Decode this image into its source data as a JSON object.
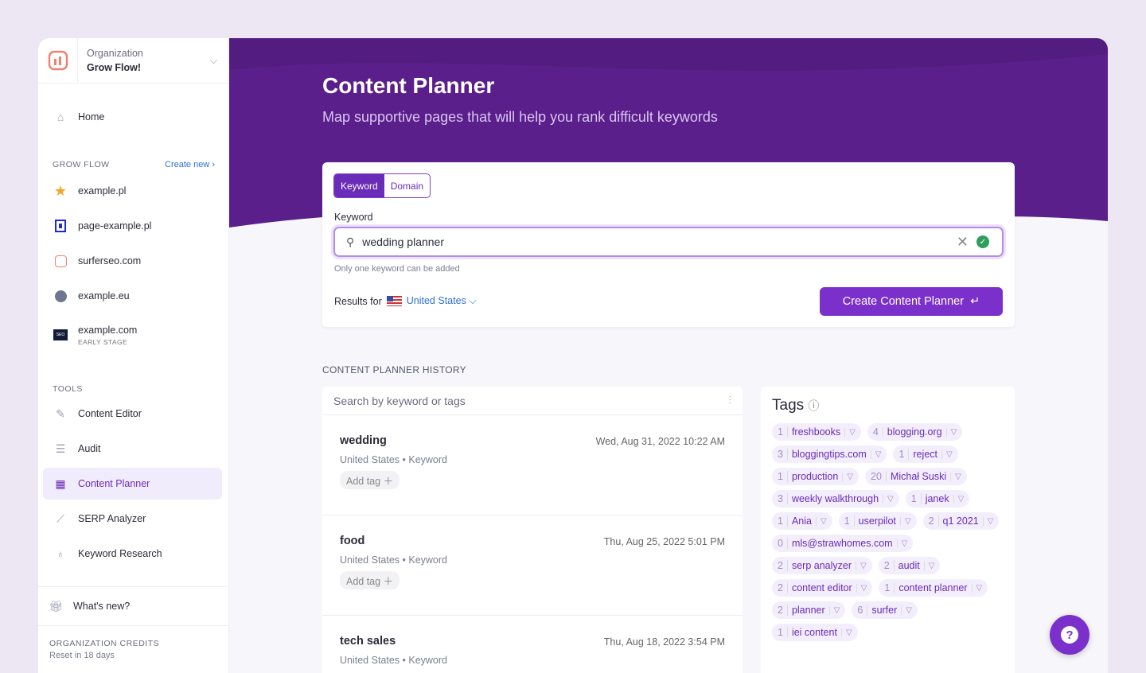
{
  "org": {
    "label": "Organization",
    "name": "Grow Flow!"
  },
  "nav": {
    "home": "Home",
    "section_grow": "GROW FLOW",
    "create_new": "Create new",
    "projects": [
      {
        "label": "example.pl",
        "icon": "star-icon"
      },
      {
        "label": "page-example.pl",
        "icon": "site-logo-icon"
      },
      {
        "label": "surferseo.com",
        "icon": "surfer-logo-icon"
      },
      {
        "label": "example.eu",
        "icon": "globe-icon"
      },
      {
        "label": "example.com",
        "sub": "EARLY STAGE",
        "icon": "seo-logo-icon"
      }
    ],
    "section_tools": "TOOLS",
    "tools": [
      {
        "label": "Content Editor",
        "icon": "pencil-icon"
      },
      {
        "label": "Audit",
        "icon": "menu-icon"
      },
      {
        "label": "Content Planner",
        "icon": "grid-icon",
        "active": true
      },
      {
        "label": "SERP Analyzer",
        "icon": "chart-line-icon"
      },
      {
        "label": "Keyword Research",
        "icon": "lightbulb-icon"
      }
    ],
    "whats_new": "What's new?",
    "credits": "ORGANIZATION CREDITS",
    "reset": "Reset in 18 days"
  },
  "header": {
    "title": "Content Planner",
    "subtitle": "Map supportive pages that will help you rank difficult keywords"
  },
  "form": {
    "tab_keyword": "Keyword",
    "tab_domain": "Domain",
    "label": "Keyword",
    "value": "wedding planner",
    "hint": "Only one keyword can be added",
    "results_for": "Results for",
    "country": "United States",
    "submit": "Create Content Planner"
  },
  "history": {
    "title": "CONTENT PLANNER HISTORY",
    "search_placeholder": "Search by keyword or tags",
    "add_tag": "Add tag",
    "items": [
      {
        "keyword": "wedding",
        "date": "Wed, Aug 31, 2022 10:22 AM",
        "meta": "United States • Keyword"
      },
      {
        "keyword": "food",
        "date": "Thu, Aug 25, 2022 5:01 PM",
        "meta": "United States • Keyword"
      },
      {
        "keyword": "tech sales",
        "date": "Thu, Aug 18, 2022 3:54 PM",
        "meta": "United States • Keyword"
      }
    ]
  },
  "tags": {
    "title": "Tags",
    "items": [
      {
        "n": "1",
        "label": "freshbooks"
      },
      {
        "n": "4",
        "label": "blogging.org"
      },
      {
        "n": "3",
        "label": "bloggingtips.com"
      },
      {
        "n": "1",
        "label": "reject"
      },
      {
        "n": "1",
        "label": "production"
      },
      {
        "n": "20",
        "label": "Michał Suski"
      },
      {
        "n": "3",
        "label": "weekly walkthrough"
      },
      {
        "n": "1",
        "label": "janek"
      },
      {
        "n": "1",
        "label": "Ania"
      },
      {
        "n": "1",
        "label": "userpilot"
      },
      {
        "n": "2",
        "label": "q1 2021"
      },
      {
        "n": "0",
        "label": "mls@strawhomes.com"
      },
      {
        "n": "2",
        "label": "serp analyzer"
      },
      {
        "n": "2",
        "label": "audit"
      },
      {
        "n": "2",
        "label": "content editor"
      },
      {
        "n": "1",
        "label": "content planner"
      },
      {
        "n": "2",
        "label": "planner"
      },
      {
        "n": "6",
        "label": "surfer"
      },
      {
        "n": "1",
        "label": "iei content"
      }
    ]
  },
  "colors": {
    "brand": "#7b2fcb",
    "header": "#5b1f8c"
  }
}
